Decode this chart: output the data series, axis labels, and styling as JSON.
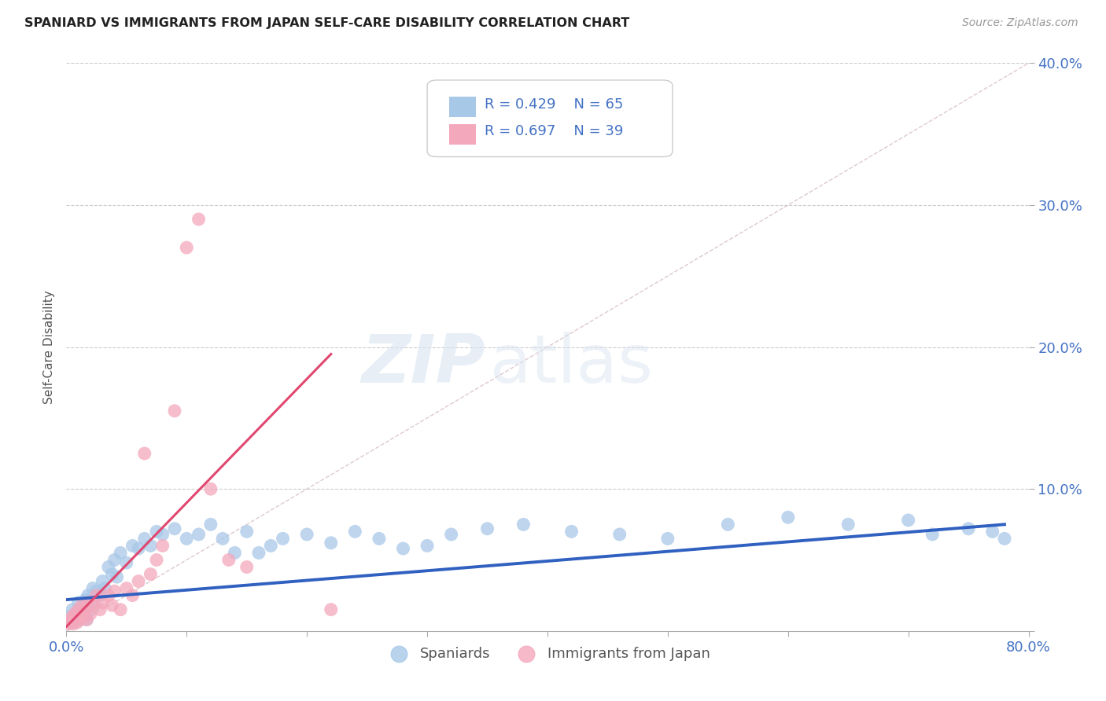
{
  "title": "SPANIARD VS IMMIGRANTS FROM JAPAN SELF-CARE DISABILITY CORRELATION CHART",
  "source": "Source: ZipAtlas.com",
  "ylabel": "Self-Care Disability",
  "xlim": [
    0,
    0.8
  ],
  "ylim": [
    0,
    0.4
  ],
  "xticks": [
    0.0,
    0.1,
    0.2,
    0.3,
    0.4,
    0.5,
    0.6,
    0.7,
    0.8
  ],
  "yticks": [
    0.0,
    0.1,
    0.2,
    0.3,
    0.4
  ],
  "legend_r_blue": "R = 0.429",
  "legend_n_blue": "N = 65",
  "legend_r_pink": "R = 0.697",
  "legend_n_pink": "N = 39",
  "color_blue": "#A8C8E8",
  "color_pink": "#F4A8BC",
  "color_blue_line": "#3060C0",
  "color_pink_line": "#E04870",
  "color_diag_line": "#D8C0C8",
  "watermark_zip": "ZIP",
  "watermark_atlas": "atlas",
  "spaniard_x": [
    0.002,
    0.004,
    0.005,
    0.006,
    0.007,
    0.008,
    0.009,
    0.01,
    0.011,
    0.012,
    0.013,
    0.014,
    0.015,
    0.016,
    0.017,
    0.018,
    0.02,
    0.022,
    0.023,
    0.025,
    0.028,
    0.03,
    0.032,
    0.035,
    0.038,
    0.04,
    0.042,
    0.045,
    0.05,
    0.055,
    0.06,
    0.065,
    0.07,
    0.075,
    0.08,
    0.09,
    0.1,
    0.11,
    0.12,
    0.13,
    0.14,
    0.15,
    0.16,
    0.17,
    0.18,
    0.2,
    0.22,
    0.24,
    0.26,
    0.28,
    0.3,
    0.32,
    0.35,
    0.38,
    0.42,
    0.46,
    0.5,
    0.55,
    0.6,
    0.65,
    0.7,
    0.72,
    0.75,
    0.77,
    0.78
  ],
  "spaniard_y": [
    0.01,
    0.008,
    0.015,
    0.006,
    0.012,
    0.008,
    0.01,
    0.02,
    0.008,
    0.015,
    0.012,
    0.018,
    0.01,
    0.022,
    0.008,
    0.025,
    0.015,
    0.03,
    0.018,
    0.028,
    0.025,
    0.035,
    0.03,
    0.045,
    0.04,
    0.05,
    0.038,
    0.055,
    0.048,
    0.06,
    0.058,
    0.065,
    0.06,
    0.07,
    0.068,
    0.072,
    0.065,
    0.068,
    0.075,
    0.065,
    0.055,
    0.07,
    0.055,
    0.06,
    0.065,
    0.068,
    0.062,
    0.07,
    0.065,
    0.058,
    0.06,
    0.068,
    0.072,
    0.075,
    0.07,
    0.068,
    0.065,
    0.075,
    0.08,
    0.075,
    0.078,
    0.068,
    0.072,
    0.07,
    0.065
  ],
  "japan_x": [
    0.002,
    0.003,
    0.004,
    0.005,
    0.006,
    0.007,
    0.008,
    0.009,
    0.01,
    0.011,
    0.012,
    0.013,
    0.015,
    0.016,
    0.017,
    0.018,
    0.02,
    0.022,
    0.025,
    0.028,
    0.03,
    0.035,
    0.038,
    0.04,
    0.045,
    0.05,
    0.055,
    0.06,
    0.065,
    0.07,
    0.075,
    0.08,
    0.09,
    0.1,
    0.11,
    0.12,
    0.135,
    0.15,
    0.22
  ],
  "japan_y": [
    0.005,
    0.008,
    0.006,
    0.01,
    0.005,
    0.012,
    0.008,
    0.006,
    0.015,
    0.01,
    0.008,
    0.018,
    0.01,
    0.015,
    0.008,
    0.02,
    0.012,
    0.018,
    0.025,
    0.015,
    0.02,
    0.025,
    0.018,
    0.028,
    0.015,
    0.03,
    0.025,
    0.035,
    0.125,
    0.04,
    0.05,
    0.06,
    0.155,
    0.27,
    0.29,
    0.1,
    0.05,
    0.045,
    0.015
  ],
  "blue_line_x": [
    0.0,
    0.78
  ],
  "blue_line_y": [
    0.022,
    0.075
  ],
  "pink_line_x": [
    0.0,
    0.22
  ],
  "pink_line_y": [
    0.003,
    0.195
  ]
}
